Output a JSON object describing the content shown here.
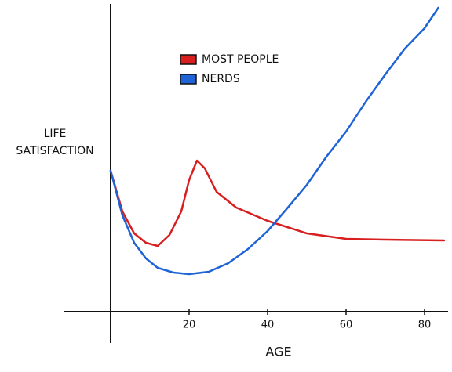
{
  "chart_data": {
    "type": "line",
    "xlabel": "AGE",
    "ylabel": "LIFE SATISFACTION",
    "xlim": [
      -12,
      86
    ],
    "xticks": [
      20,
      40,
      60,
      80
    ],
    "ylim": [
      -8,
      78
    ],
    "legend": "upper center",
    "series": [
      {
        "name": "MOST PEOPLE",
        "color": "#d81e1e",
        "x": [
          0,
          3,
          6,
          9,
          12,
          15,
          18,
          20,
          22,
          24,
          27,
          32,
          40,
          50,
          60,
          70,
          85
        ],
        "values": [
          36,
          25.6,
          20,
          17.6,
          16.8,
          19.6,
          25.6,
          33.6,
          38.6,
          36.6,
          30.6,
          26.6,
          23.2,
          20,
          18.6,
          18.4,
          18.2
        ]
      },
      {
        "name": "NERDS",
        "color": "#1f63d6",
        "x": [
          0,
          3,
          6,
          9,
          12,
          16,
          20,
          25,
          30,
          35,
          40,
          45,
          50,
          55,
          60,
          65,
          70,
          75,
          80,
          83.5
        ],
        "values": [
          36,
          24.6,
          17.6,
          13.6,
          11.2,
          10,
          9.6,
          10.2,
          12.4,
          16,
          20.6,
          26.4,
          32.4,
          39.6,
          46,
          53.6,
          60.6,
          67.2,
          72.4,
          77.6
        ]
      }
    ]
  }
}
